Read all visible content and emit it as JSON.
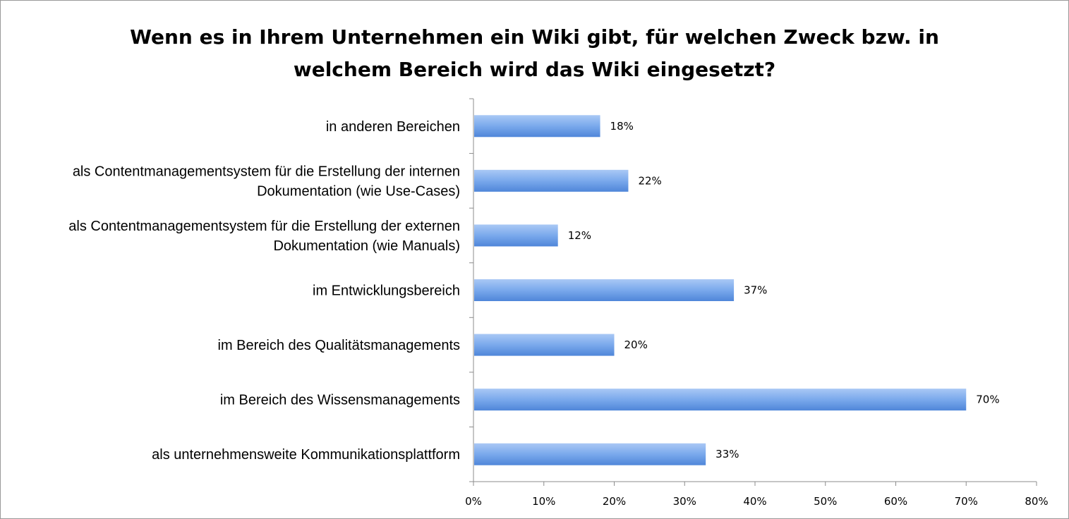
{
  "chart_data": {
    "type": "bar",
    "orientation": "horizontal",
    "title_lines": [
      "Wenn es in Ihrem Unternehmen ein Wiki gibt, für welchen Zweck bzw. in",
      "welchem Bereich wird das Wiki eingesetzt?"
    ],
    "categories": [
      [
        "in anderen Bereichen"
      ],
      [
        "als Contentmanagementsystem für die Erstellung der internen",
        "Dokumentation (wie Use-Cases)"
      ],
      [
        "als Contentmanagementsystem für die Erstellung der externen",
        "Dokumentation (wie Manuals)"
      ],
      [
        "im Entwicklungsbereich"
      ],
      [
        "im Bereich des Qualitätsmanagements"
      ],
      [
        "im Bereich des Wissensmanagements"
      ],
      [
        "als unternehmensweite Kommunikationsplattform"
      ]
    ],
    "values": [
      18,
      22,
      12,
      37,
      20,
      70,
      33
    ],
    "value_labels": [
      "18%",
      "22%",
      "12%",
      "37%",
      "20%",
      "70%",
      "33%"
    ],
    "xlim": [
      0,
      80
    ],
    "xticks": [
      0,
      10,
      20,
      30,
      40,
      50,
      60,
      70,
      80
    ],
    "xtick_labels": [
      "0%",
      "10%",
      "20%",
      "30%",
      "40%",
      "50%",
      "60%",
      "70%",
      "80%"
    ],
    "grid": false,
    "legend": "none",
    "bar_color": "#6f9fe6"
  }
}
